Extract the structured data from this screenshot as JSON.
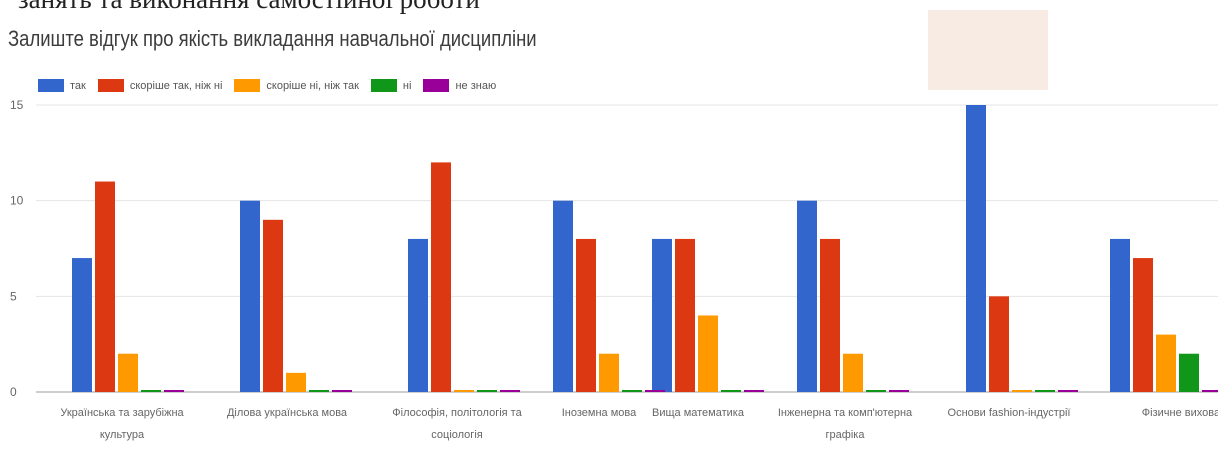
{
  "page": {
    "top_caption": "занять та виконання самостійної роботи"
  },
  "chart_data": {
    "type": "bar",
    "title": "Залиште відгук про якість викладання навчальної дисципліни",
    "categories": [
      "Українська та зарубіжна культура",
      "Ділова українська мова",
      "Філософія, політологія та соціологія",
      "Іноземна мова",
      "Вища математика",
      "Інженерна та комп'ютерна графіка",
      "Основи fashion-індустрії",
      "Фізичне виховання"
    ],
    "category_lines": [
      [
        "Українська та зарубіжна",
        "культура"
      ],
      [
        "Ділова українська мова"
      ],
      [
        "Філософія, політологія та",
        "соціологія"
      ],
      [
        "Іноземна мова"
      ],
      [
        "Вища математика"
      ],
      [
        "Інженерна та комп'ютерна",
        "графіка"
      ],
      [
        "Основи fashion-індустрії"
      ],
      [
        "Фізичне виховання"
      ]
    ],
    "series": [
      {
        "name": "так",
        "color": "#3366cc",
        "values": [
          7,
          10,
          8,
          10,
          8,
          10,
          15,
          8
        ]
      },
      {
        "name": "скоріше так, ніж ні",
        "color": "#dc3912",
        "values": [
          11,
          9,
          12,
          8,
          8,
          8,
          5,
          7
        ]
      },
      {
        "name": "скоріше ні, ніж так",
        "color": "#ff9900",
        "values": [
          2,
          1,
          0,
          2,
          4,
          2,
          0,
          3
        ]
      },
      {
        "name": "ні",
        "color": "#109618",
        "values": [
          0,
          0,
          0,
          0,
          0,
          0,
          0,
          2
        ]
      },
      {
        "name": "не знаю",
        "color": "#990099",
        "values": [
          0,
          0,
          0,
          0,
          0,
          0,
          0,
          0
        ]
      }
    ],
    "yticks": [
      0,
      5,
      10,
      15
    ],
    "ylim": [
      0,
      15
    ],
    "grid": true,
    "legend_position": "top-left"
  }
}
